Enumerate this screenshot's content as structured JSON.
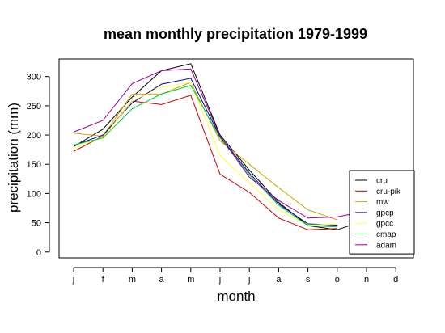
{
  "chart_data": {
    "type": "line",
    "title": "mean monthly precipitation 1979-1999",
    "xlabel": "month",
    "ylabel": "precipitation (mm)",
    "categories": [
      "j",
      "f",
      "m",
      "a",
      "m",
      "j",
      "j",
      "a",
      "s",
      "o",
      "n",
      "d"
    ],
    "ylim": [
      -10,
      330
    ],
    "yticks": [
      0,
      50,
      100,
      150,
      200,
      250,
      300
    ],
    "grid": false,
    "legend_position": "bottom-right",
    "series": [
      {
        "name": "cru",
        "color": "#000000",
        "values": [
          180,
          210,
          265,
          310,
          322,
          200,
          140,
          85,
          45,
          38,
          55,
          null
        ]
      },
      {
        "name": "cru-pik",
        "color": "#cc0000",
        "values": [
          172,
          198,
          258,
          252,
          268,
          133,
          102,
          58,
          38,
          40,
          null,
          null
        ]
      },
      {
        "name": "mw",
        "color": "#ccaa00",
        "values": [
          203,
          198,
          270,
          270,
          290,
          190,
          150,
          110,
          72,
          55,
          null,
          null
        ]
      },
      {
        "name": "gpcp",
        "color": "#000099",
        "values": [
          182,
          200,
          255,
          287,
          297,
          197,
          135,
          82,
          48,
          46,
          null,
          null
        ]
      },
      {
        "name": "gpcc",
        "color": "#ffff44",
        "values": [
          178,
          196,
          258,
          282,
          290,
          165,
          118,
          72,
          46,
          48,
          null,
          null
        ]
      },
      {
        "name": "cmap",
        "color": "#00cc33",
        "values": [
          183,
          195,
          245,
          270,
          285,
          195,
          132,
          80,
          45,
          43,
          null,
          null
        ]
      },
      {
        "name": "adam",
        "color": "#990099",
        "values": [
          205,
          225,
          288,
          310,
          313,
          198,
          128,
          88,
          58,
          60,
          70,
          null
        ]
      }
    ]
  }
}
